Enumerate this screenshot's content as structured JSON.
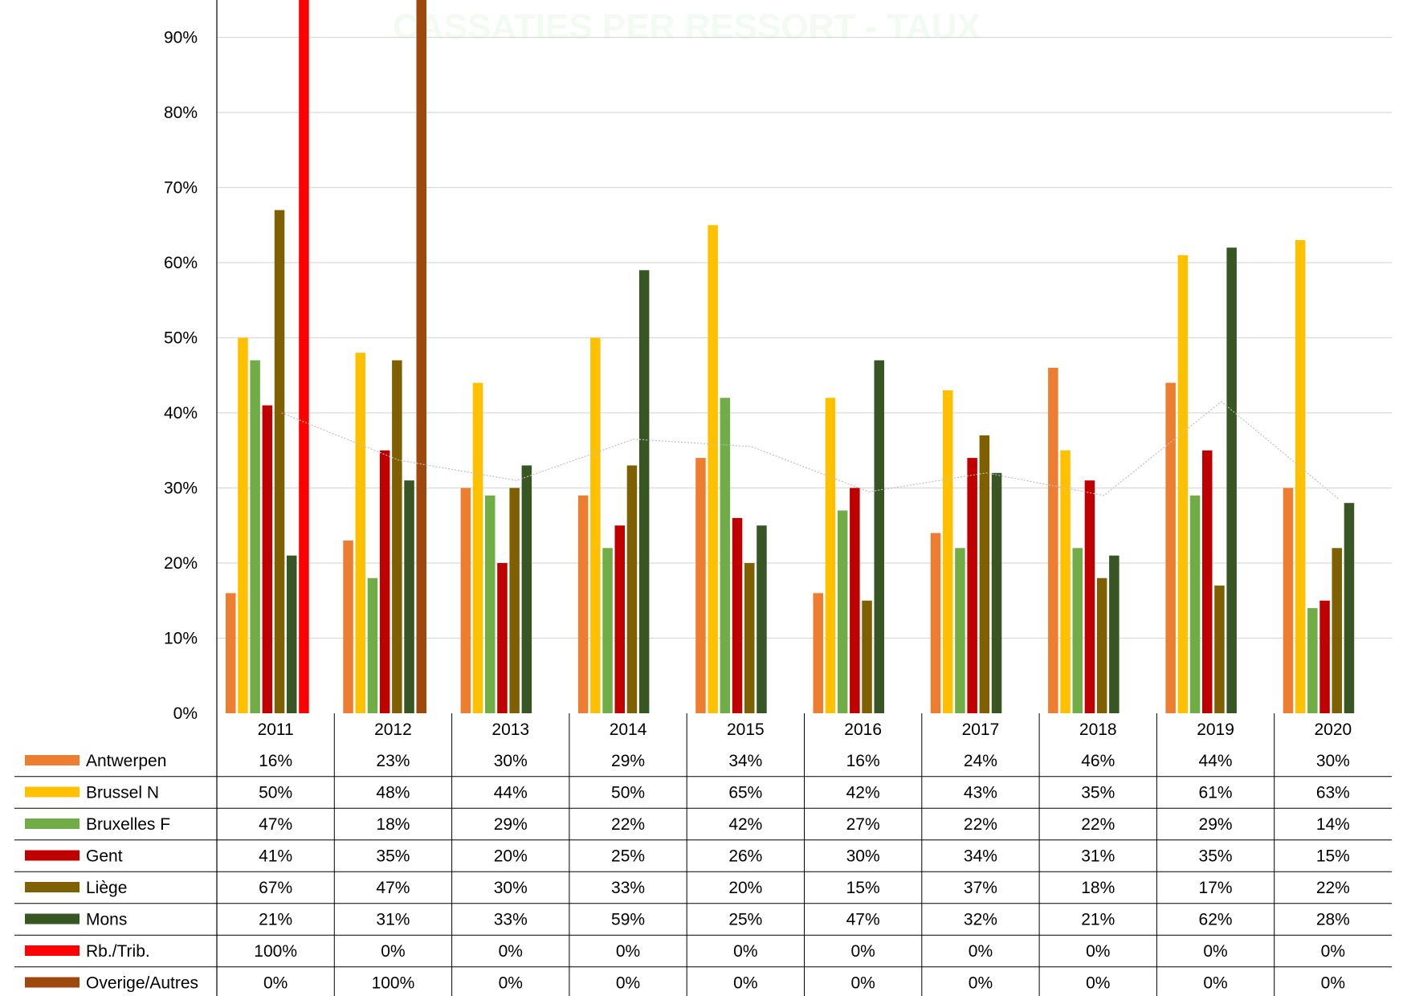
{
  "chart_data": {
    "type": "bar",
    "title": "CASSATIES PER RESSORT - TAUX",
    "categories": [
      "2011",
      "2012",
      "2013",
      "2014",
      "2015",
      "2016",
      "2017",
      "2018",
      "2019",
      "2020"
    ],
    "y_ticks": [
      "0%",
      "10%",
      "20%",
      "30%",
      "40%",
      "50%",
      "60%",
      "70%",
      "80%",
      "90%"
    ],
    "ylim": [
      0,
      95
    ],
    "grid": true,
    "legend_placement": "data-table-below",
    "series": [
      {
        "name": "Antwerpen",
        "color": "#ED7D31",
        "values": [
          16,
          23,
          30,
          29,
          34,
          16,
          24,
          46,
          44,
          30
        ],
        "labels": [
          "16%",
          "23%",
          "30%",
          "29%",
          "34%",
          "16%",
          "24%",
          "46%",
          "44%",
          "30%"
        ]
      },
      {
        "name": "Brussel N",
        "color": "#FFC000",
        "values": [
          50,
          48,
          44,
          50,
          65,
          42,
          43,
          35,
          61,
          63
        ],
        "labels": [
          "50%",
          "48%",
          "44%",
          "50%",
          "65%",
          "42%",
          "43%",
          "35%",
          "61%",
          "63%"
        ]
      },
      {
        "name": "Bruxelles F",
        "color": "#70AD47",
        "values": [
          47,
          18,
          29,
          22,
          42,
          27,
          22,
          22,
          29,
          14
        ],
        "labels": [
          "47%",
          "18%",
          "29%",
          "22%",
          "42%",
          "27%",
          "22%",
          "22%",
          "29%",
          "14%"
        ]
      },
      {
        "name": "Gent",
        "color": "#C00000",
        "values": [
          41,
          35,
          20,
          25,
          26,
          30,
          34,
          31,
          35,
          15
        ],
        "labels": [
          "41%",
          "35%",
          "20%",
          "25%",
          "26%",
          "30%",
          "34%",
          "31%",
          "35%",
          "15%"
        ]
      },
      {
        "name": "Liège",
        "color": "#7F6000",
        "values": [
          67,
          47,
          30,
          33,
          20,
          15,
          37,
          18,
          17,
          22
        ],
        "labels": [
          "67%",
          "47%",
          "30%",
          "33%",
          "20%",
          "15%",
          "37%",
          "18%",
          "17%",
          "22%"
        ]
      },
      {
        "name": "Mons",
        "color": "#375623",
        "values": [
          21,
          31,
          33,
          59,
          25,
          47,
          32,
          21,
          62,
          28
        ],
        "labels": [
          "21%",
          "31%",
          "33%",
          "59%",
          "25%",
          "47%",
          "32%",
          "21%",
          "62%",
          "28%"
        ]
      },
      {
        "name": "Rb./Trib.",
        "color": "#FF0000",
        "values": [
          100,
          0,
          0,
          0,
          0,
          0,
          0,
          0,
          0,
          0
        ],
        "labels": [
          "100%",
          "0%",
          "0%",
          "0%",
          "0%",
          "0%",
          "0%",
          "0%",
          "0%",
          "0%"
        ]
      },
      {
        "name": "Overige/Autres",
        "color": "#9E480E",
        "values": [
          0,
          100,
          0,
          0,
          0,
          0,
          0,
          0,
          0,
          0
        ],
        "labels": [
          "0%",
          "100%",
          "0%",
          "0%",
          "0%",
          "0%",
          "0%",
          "0%",
          "0%",
          "0%"
        ]
      }
    ],
    "trend_line": {
      "color": "#bfbfbf",
      "values": [
        40,
        33.7,
        31,
        36.5,
        35.5,
        29.5,
        32,
        29,
        41.5,
        28.5
      ]
    }
  }
}
